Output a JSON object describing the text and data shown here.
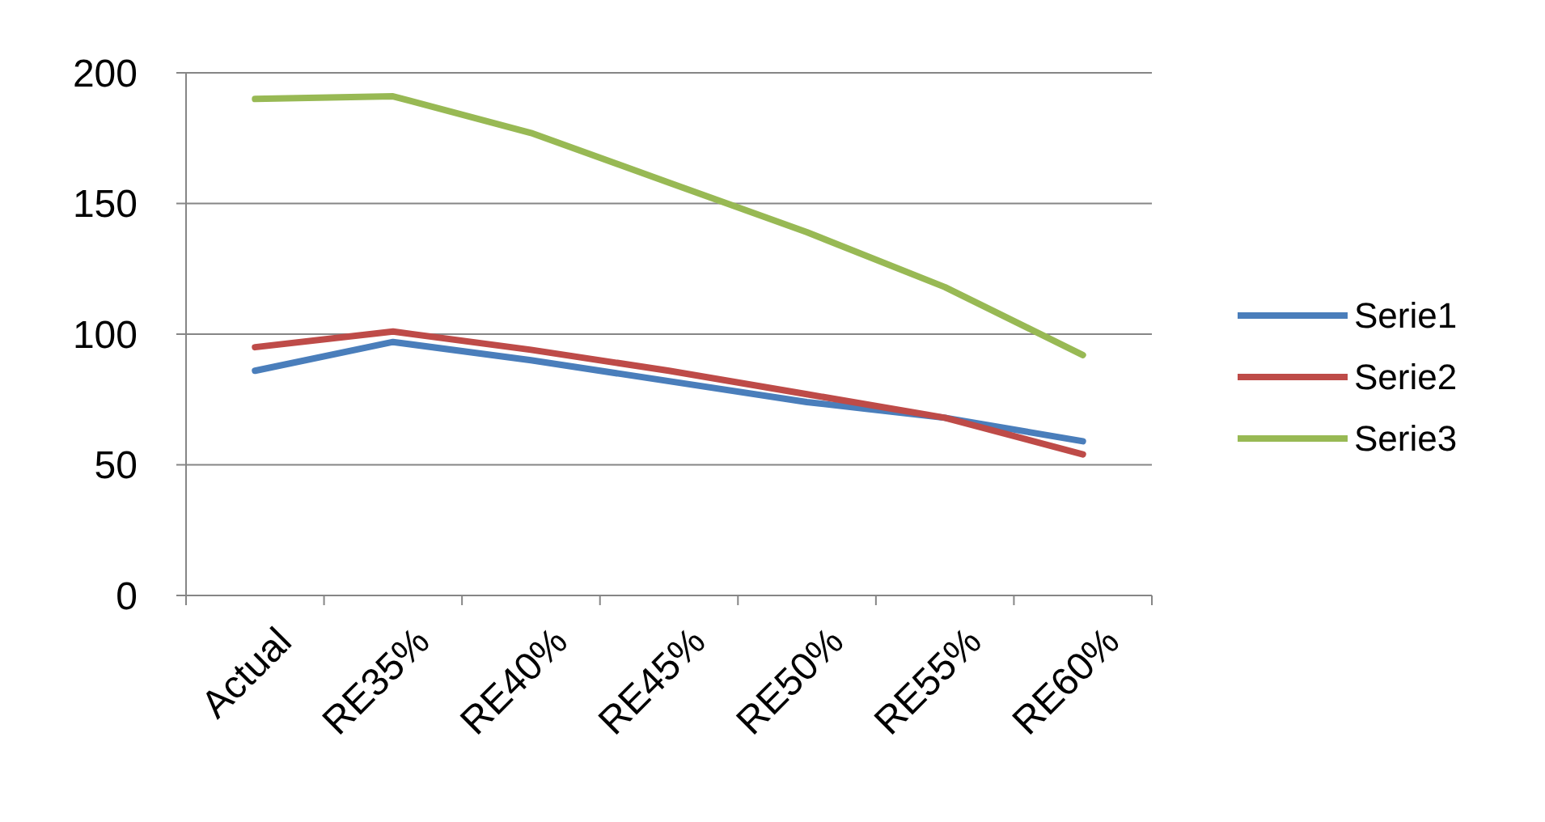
{
  "chart_data": {
    "type": "line",
    "categories": [
      "Actual",
      "RE35%",
      "RE40%",
      "RE45%",
      "RE50%",
      "RE55%",
      "RE60%"
    ],
    "series": [
      {
        "name": "Serie1",
        "color": "#4a7ebb",
        "values": [
          86,
          97,
          90,
          82,
          74,
          68,
          59
        ]
      },
      {
        "name": "Serie2",
        "color": "#be4b48",
        "values": [
          95,
          101,
          94,
          86,
          77,
          68,
          54
        ]
      },
      {
        "name": "Serie3",
        "color": "#98b954",
        "values": [
          190,
          191,
          177,
          158,
          139,
          118,
          92
        ]
      }
    ],
    "ylim": [
      0,
      200
    ],
    "yticks": [
      0,
      50,
      100,
      150,
      200
    ],
    "grid": "y",
    "legend": "right",
    "marker": "none",
    "line_style": "solid"
  }
}
